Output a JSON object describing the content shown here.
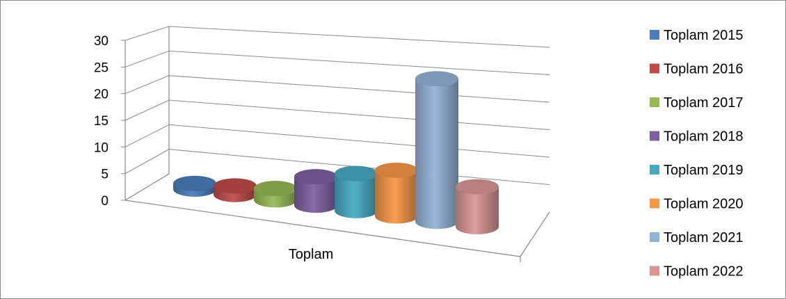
{
  "chart_data": {
    "type": "bar",
    "style": "3d-cylinder",
    "categories": [
      "Toplam"
    ],
    "series": [
      {
        "name": "Toplam 2015",
        "values": [
          1
        ],
        "color": "#4A7EBB"
      },
      {
        "name": "Toplam 2016",
        "values": [
          1.5
        ],
        "color": "#BE4B48"
      },
      {
        "name": "Toplam 2017",
        "values": [
          2
        ],
        "color": "#98B954"
      },
      {
        "name": "Toplam 2018",
        "values": [
          5
        ],
        "color": "#7D5FA0"
      },
      {
        "name": "Toplam 2019",
        "values": [
          6.5
        ],
        "color": "#46AAC5"
      },
      {
        "name": "Toplam 2020",
        "values": [
          8
        ],
        "color": "#F79646"
      },
      {
        "name": "Toplam 2021",
        "values": [
          25
        ],
        "color": "#95B3D7"
      },
      {
        "name": "Toplam 2022",
        "values": [
          7
        ],
        "color": "#D99694"
      }
    ],
    "yticks": [
      "0",
      "5",
      "10",
      "15",
      "20",
      "25",
      "30"
    ],
    "ylim": [
      0,
      30
    ],
    "grid": true,
    "legend": "right"
  }
}
